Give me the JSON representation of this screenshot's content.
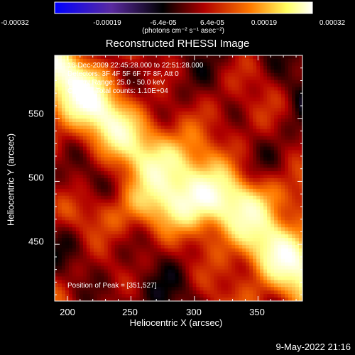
{
  "colorbar": {
    "ticks": [
      "-0.00032",
      "-0.00019",
      "-6.4e-05",
      "6.4e-05",
      "0.00019",
      "0.00032"
    ],
    "units": "(photons cm⁻² s⁻¹ asec⁻²)"
  },
  "title": "Reconstructed RHESSI Image",
  "info": {
    "time": "16-Dec-2009 22:45:28.000 to 22:51:28.000",
    "detectors": "Detectors: 3F 4F 5F 6F 7F 8F, Att 0",
    "energy": "Energy Range: 25.0 - 50.0 keV",
    "clean": "Clean     Total counts: 1.10E+04",
    "peak": "Position of Peak = [351,527]"
  },
  "footer_date": "9-May-2022 21:16",
  "chart_data": {
    "type": "heatmap",
    "title": "Reconstructed RHESSI Image",
    "xlabel": "Heliocentric X (arcsec)",
    "ylabel": "Heliocentric Y (arcsec)",
    "xlim": [
      190,
      385
    ],
    "ylim": [
      405,
      600
    ],
    "xticks": [
      200,
      250,
      300,
      350
    ],
    "yticks": [
      450,
      500,
      550
    ],
    "colorbar_range": [
      -0.00032,
      0.00032
    ],
    "colormap": [
      "#0000ff",
      "#5a2aa0",
      "#000000",
      "#b00000",
      "#ff7a00",
      "#ffff88",
      "#ffffff"
    ],
    "peak": [
      351,
      527
    ]
  }
}
